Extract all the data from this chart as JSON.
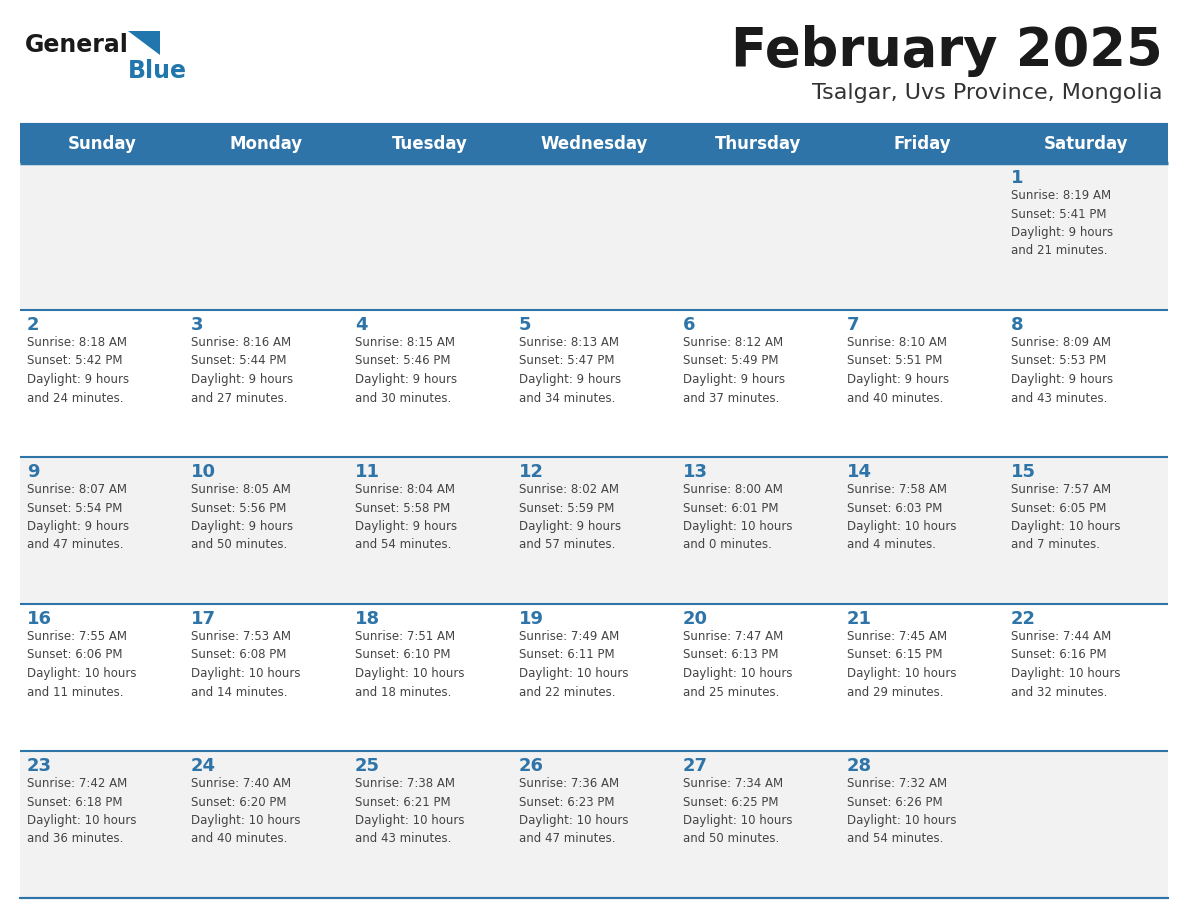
{
  "title": "February 2025",
  "subtitle": "Tsalgar, Uvs Province, Mongolia",
  "days_of_week": [
    "Sunday",
    "Monday",
    "Tuesday",
    "Wednesday",
    "Thursday",
    "Friday",
    "Saturday"
  ],
  "header_bg": "#2E74A8",
  "header_text_color": "#FFFFFF",
  "cell_bg_odd": "#F2F2F2",
  "cell_bg_even": "#FFFFFF",
  "border_color": "#2E74A8",
  "title_color": "#1a1a1a",
  "subtitle_color": "#333333",
  "day_number_color": "#2E74A8",
  "cell_text_color": "#444444",
  "logo_general_color": "#1a1a1a",
  "logo_blue_color": "#2176AE",
  "calendar": [
    [
      {
        "day": null,
        "info": null
      },
      {
        "day": null,
        "info": null
      },
      {
        "day": null,
        "info": null
      },
      {
        "day": null,
        "info": null
      },
      {
        "day": null,
        "info": null
      },
      {
        "day": null,
        "info": null
      },
      {
        "day": 1,
        "info": "Sunrise: 8:19 AM\nSunset: 5:41 PM\nDaylight: 9 hours\nand 21 minutes."
      }
    ],
    [
      {
        "day": 2,
        "info": "Sunrise: 8:18 AM\nSunset: 5:42 PM\nDaylight: 9 hours\nand 24 minutes."
      },
      {
        "day": 3,
        "info": "Sunrise: 8:16 AM\nSunset: 5:44 PM\nDaylight: 9 hours\nand 27 minutes."
      },
      {
        "day": 4,
        "info": "Sunrise: 8:15 AM\nSunset: 5:46 PM\nDaylight: 9 hours\nand 30 minutes."
      },
      {
        "day": 5,
        "info": "Sunrise: 8:13 AM\nSunset: 5:47 PM\nDaylight: 9 hours\nand 34 minutes."
      },
      {
        "day": 6,
        "info": "Sunrise: 8:12 AM\nSunset: 5:49 PM\nDaylight: 9 hours\nand 37 minutes."
      },
      {
        "day": 7,
        "info": "Sunrise: 8:10 AM\nSunset: 5:51 PM\nDaylight: 9 hours\nand 40 minutes."
      },
      {
        "day": 8,
        "info": "Sunrise: 8:09 AM\nSunset: 5:53 PM\nDaylight: 9 hours\nand 43 minutes."
      }
    ],
    [
      {
        "day": 9,
        "info": "Sunrise: 8:07 AM\nSunset: 5:54 PM\nDaylight: 9 hours\nand 47 minutes."
      },
      {
        "day": 10,
        "info": "Sunrise: 8:05 AM\nSunset: 5:56 PM\nDaylight: 9 hours\nand 50 minutes."
      },
      {
        "day": 11,
        "info": "Sunrise: 8:04 AM\nSunset: 5:58 PM\nDaylight: 9 hours\nand 54 minutes."
      },
      {
        "day": 12,
        "info": "Sunrise: 8:02 AM\nSunset: 5:59 PM\nDaylight: 9 hours\nand 57 minutes."
      },
      {
        "day": 13,
        "info": "Sunrise: 8:00 AM\nSunset: 6:01 PM\nDaylight: 10 hours\nand 0 minutes."
      },
      {
        "day": 14,
        "info": "Sunrise: 7:58 AM\nSunset: 6:03 PM\nDaylight: 10 hours\nand 4 minutes."
      },
      {
        "day": 15,
        "info": "Sunrise: 7:57 AM\nSunset: 6:05 PM\nDaylight: 10 hours\nand 7 minutes."
      }
    ],
    [
      {
        "day": 16,
        "info": "Sunrise: 7:55 AM\nSunset: 6:06 PM\nDaylight: 10 hours\nand 11 minutes."
      },
      {
        "day": 17,
        "info": "Sunrise: 7:53 AM\nSunset: 6:08 PM\nDaylight: 10 hours\nand 14 minutes."
      },
      {
        "day": 18,
        "info": "Sunrise: 7:51 AM\nSunset: 6:10 PM\nDaylight: 10 hours\nand 18 minutes."
      },
      {
        "day": 19,
        "info": "Sunrise: 7:49 AM\nSunset: 6:11 PM\nDaylight: 10 hours\nand 22 minutes."
      },
      {
        "day": 20,
        "info": "Sunrise: 7:47 AM\nSunset: 6:13 PM\nDaylight: 10 hours\nand 25 minutes."
      },
      {
        "day": 21,
        "info": "Sunrise: 7:45 AM\nSunset: 6:15 PM\nDaylight: 10 hours\nand 29 minutes."
      },
      {
        "day": 22,
        "info": "Sunrise: 7:44 AM\nSunset: 6:16 PM\nDaylight: 10 hours\nand 32 minutes."
      }
    ],
    [
      {
        "day": 23,
        "info": "Sunrise: 7:42 AM\nSunset: 6:18 PM\nDaylight: 10 hours\nand 36 minutes."
      },
      {
        "day": 24,
        "info": "Sunrise: 7:40 AM\nSunset: 6:20 PM\nDaylight: 10 hours\nand 40 minutes."
      },
      {
        "day": 25,
        "info": "Sunrise: 7:38 AM\nSunset: 6:21 PM\nDaylight: 10 hours\nand 43 minutes."
      },
      {
        "day": 26,
        "info": "Sunrise: 7:36 AM\nSunset: 6:23 PM\nDaylight: 10 hours\nand 47 minutes."
      },
      {
        "day": 27,
        "info": "Sunrise: 7:34 AM\nSunset: 6:25 PM\nDaylight: 10 hours\nand 50 minutes."
      },
      {
        "day": 28,
        "info": "Sunrise: 7:32 AM\nSunset: 6:26 PM\nDaylight: 10 hours\nand 54 minutes."
      },
      {
        "day": null,
        "info": null
      }
    ]
  ]
}
